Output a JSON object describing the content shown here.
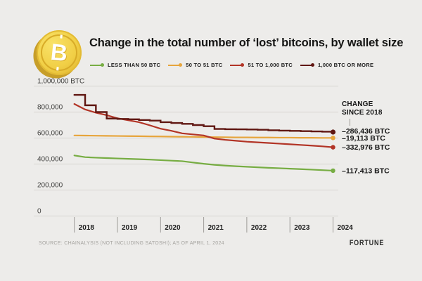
{
  "page": {
    "title": "Change in the total number of ‘lost’ bitcoins, by wallet size",
    "source": "SOURCE: CHAINALYSIS (NOT INCLUDING SATOSHI); AS OF APRIL 1, 2024",
    "brand": "FORTUNE",
    "coin_symbol": "B"
  },
  "annotations": {
    "change_header_line1": "CHANGE",
    "change_header_line2": "SINCE 2018"
  },
  "chart_data": {
    "type": "line",
    "title": "Change in the total number of ‘lost’ bitcoins, by wallet size",
    "xlabel": "",
    "ylabel": "BTC",
    "ylim": [
      0,
      1000000
    ],
    "grid": true,
    "legend_position": "top",
    "x_start": 2018,
    "x_step": 0.25,
    "x_end": 2024,
    "x_ticks": [
      {
        "year": 2018,
        "label": "2018"
      },
      {
        "year": 2019,
        "label": "2019"
      },
      {
        "year": 2020,
        "label": "2020"
      },
      {
        "year": 2021,
        "label": "2021"
      },
      {
        "year": 2022,
        "label": "2022"
      },
      {
        "year": 2023,
        "label": "2023"
      },
      {
        "year": 2024,
        "label": "2024"
      }
    ],
    "y_ticks": [
      {
        "value": 1000000,
        "label": "1,000,000 BTC"
      },
      {
        "value": 800000,
        "label": "800,000"
      },
      {
        "value": 600000,
        "label": "600,000"
      },
      {
        "value": 400000,
        "label": "400,000"
      },
      {
        "value": 200000,
        "label": "200,000"
      },
      {
        "value": 0,
        "label": "0"
      }
    ],
    "series": [
      {
        "id": "less-than-50-btc",
        "label": "LESS THAN 50 BTC",
        "color": "#77ad43",
        "style": "linear",
        "change_label": "–117,413 BTC",
        "change_since_2018": -117413,
        "values": [
          466000,
          453000,
          449000,
          446000,
          443000,
          440000,
          437000,
          434000,
          430000,
          426000,
          422000,
          412000,
          402000,
          394000,
          388000,
          383000,
          379000,
          375000,
          371000,
          368000,
          364000,
          361000,
          357000,
          353000,
          349000
        ]
      },
      {
        "id": "50-to-51-btc",
        "label": "50 TO 51 BTC",
        "color": "#e7a53c",
        "style": "linear",
        "change_label": "–19,113 BTC",
        "change_since_2018": -19113,
        "values": [
          620000,
          619000,
          618000,
          617000,
          616000,
          615000,
          614000,
          613000,
          612000,
          611000,
          610000,
          609000,
          608000,
          607000,
          606000,
          605000,
          605000,
          604000,
          604000,
          603000,
          603000,
          602000,
          602000,
          601000,
          601000
        ]
      },
      {
        "id": "51-to-1000-btc",
        "label": "51 TO 1,000 BTC",
        "color": "#b23426",
        "style": "linear",
        "change_label": "–332,976 BTC",
        "change_since_2018": -332976,
        "values": [
          862000,
          820000,
          795000,
          776000,
          752000,
          737000,
          722000,
          698000,
          672000,
          656000,
          636000,
          628000,
          620000,
          596000,
          586000,
          579000,
          572000,
          567000,
          562000,
          557000,
          552000,
          547000,
          542000,
          536000,
          529000
        ]
      },
      {
        "id": "1000-btc-or-more",
        "label": "1,000 BTC OR MORE",
        "color": "#601712",
        "style": "step",
        "change_label": "–286,436 BTC",
        "change_since_2018": -286436,
        "values": [
          932000,
          852000,
          800000,
          750000,
          747000,
          744000,
          739000,
          734000,
          722000,
          716000,
          709000,
          700000,
          691000,
          670000,
          668000,
          667000,
          666000,
          664000,
          660000,
          657000,
          655000,
          653000,
          651000,
          649000,
          646000
        ]
      }
    ]
  }
}
